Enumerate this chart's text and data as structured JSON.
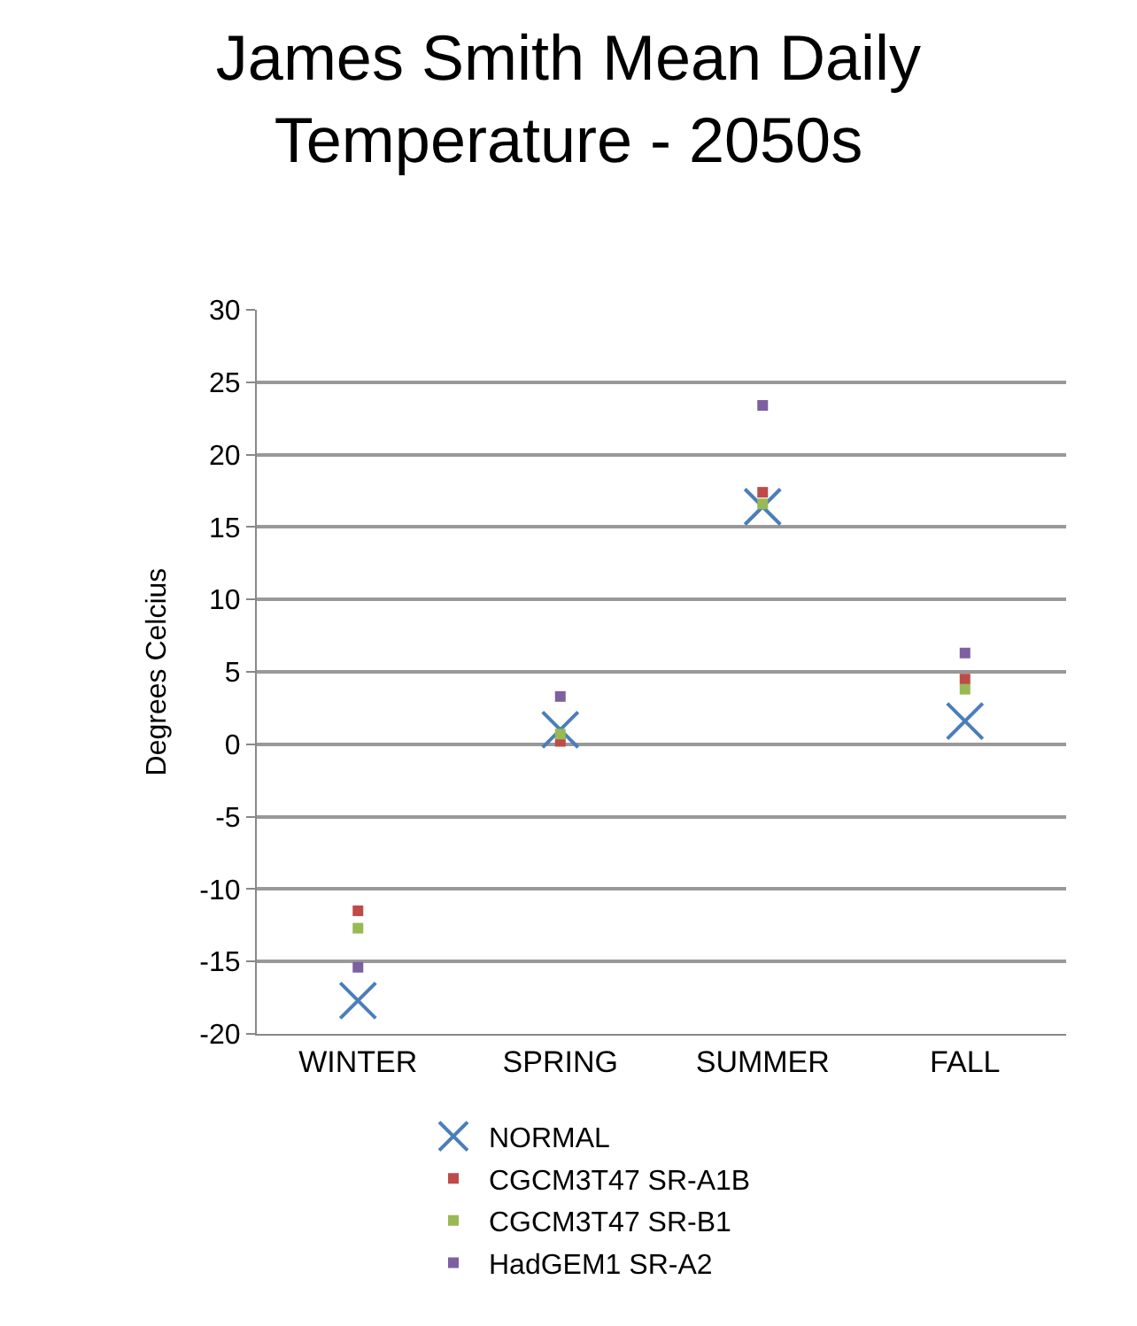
{
  "chart_data": {
    "type": "scatter",
    "title": "James Smith Mean Daily Temperature - 2050s",
    "ylabel": "Degrees Celcius",
    "categories": [
      "WINTER",
      "SPRING",
      "SUMMER",
      "FALL"
    ],
    "series": [
      {
        "name": "NORMAL",
        "color": "#4a7ebb",
        "marker": "cross",
        "values": [
          -17.7,
          1.0,
          16.4,
          1.6
        ]
      },
      {
        "name": "CGCM3T47 SR-A1B",
        "color": "#be4b48",
        "values": [
          -11.5,
          0.2,
          17.4,
          4.5
        ]
      },
      {
        "name": "CGCM3T47 SR-B1",
        "color": "#98b954",
        "values": [
          -12.7,
          0.7,
          16.6,
          3.8
        ]
      },
      {
        "name": "HadGEM1 SR-A2",
        "color": "#7d60a0",
        "values": [
          -15.4,
          3.3,
          23.4,
          6.3
        ]
      }
    ],
    "marker": "square",
    "ylim": [
      -20,
      30
    ],
    "yticks": [
      -20,
      -15,
      -10,
      -5,
      0,
      5,
      10,
      15,
      20,
      25,
      30
    ],
    "grid": "y",
    "legend": "bottom"
  }
}
